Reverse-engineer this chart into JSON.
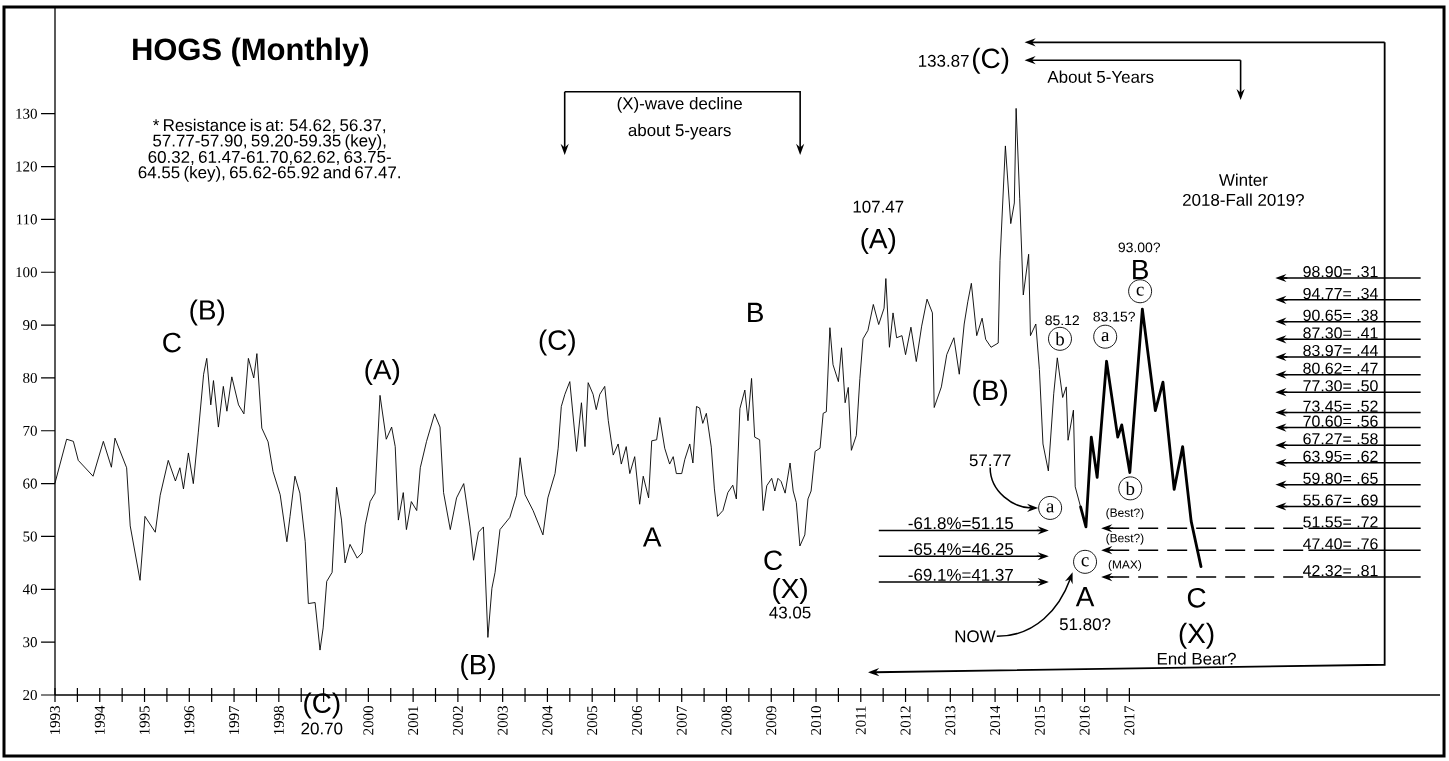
{
  "chart_data": {
    "type": "line",
    "title": "HOGS (Monthly)",
    "xlim": [
      1993,
      2023.94
    ],
    "ylim": [
      20,
      150
    ],
    "xticks": [
      1993,
      1994,
      1995,
      1996,
      1997,
      1998,
      {
        "value": 1999,
        "label": null
      },
      2000,
      2001,
      2002,
      2003,
      2004,
      2005,
      2006,
      2007,
      2008,
      2009,
      2010,
      2011,
      2012,
      2013,
      2014,
      2015,
      2016,
      2017
    ],
    "yticks": [
      20,
      30,
      40,
      50,
      60,
      70,
      80,
      90,
      100,
      110,
      120,
      130
    ],
    "series": [
      {
        "color": "#000000",
        "x": [
          1993.0,
          1993.26,
          1993.41,
          1993.52,
          1993.85,
          1994.08,
          1994.26,
          1994.34,
          1994.6,
          1994.68,
          1994.9,
          1995.01,
          1995.24,
          1995.35,
          1995.53,
          1995.69,
          1995.79,
          1995.87,
          1995.98,
          1996.09,
          1996.2,
          1996.32,
          1996.39,
          1996.48,
          1996.54,
          1996.65,
          1996.76,
          1996.84,
          1996.95,
          1997.1,
          1997.22,
          1997.32,
          1997.44,
          1997.51,
          1997.62,
          1997.76,
          1997.87,
          1998.03,
          1998.18,
          1998.25,
          1998.36,
          1998.47,
          1998.59,
          1998.66,
          1998.81,
          1998.92,
          1998.99,
          1999.07,
          1999.19,
          1999.29,
          1999.4,
          1999.48,
          1999.59,
          1999.75,
          1999.86,
          1999.93,
          2000.04,
          2000.15,
          2000.26,
          2000.4,
          2000.52,
          2000.6,
          2000.67,
          2000.78,
          2000.85,
          2000.96,
          2001.08,
          2001.16,
          2001.3,
          2001.48,
          2001.6,
          2001.68,
          2001.83,
          2001.97,
          2002.13,
          2002.27,
          2002.35,
          2002.46,
          2002.57,
          2002.67,
          2002.76,
          2002.83,
          2002.94,
          2003.16,
          2003.31,
          2003.39,
          2003.5,
          2003.68,
          2003.9,
          2004.01,
          2004.17,
          2004.24,
          2004.31,
          2004.39,
          2004.5,
          2004.65,
          2004.76,
          2004.84,
          2004.91,
          2005.02,
          2005.09,
          2005.17,
          2005.28,
          2005.36,
          2005.47,
          2005.58,
          2005.65,
          2005.76,
          2005.84,
          2005.95,
          2006.06,
          2006.14,
          2006.26,
          2006.33,
          2006.44,
          2006.51,
          2006.62,
          2006.73,
          2006.81,
          2006.88,
          2007.0,
          2007.07,
          2007.18,
          2007.25,
          2007.33,
          2007.4,
          2007.47,
          2007.55,
          2007.66,
          2007.73,
          2007.8,
          2007.92,
          2008.03,
          2008.14,
          2008.22,
          2008.3,
          2008.41,
          2008.48,
          2008.56,
          2008.63,
          2008.74,
          2008.82,
          2008.9,
          2009.01,
          2009.08,
          2009.15,
          2009.22,
          2009.31,
          2009.42,
          2009.49,
          2009.56,
          2009.64,
          2009.75,
          2009.82,
          2009.89,
          2009.98,
          2010.09,
          2010.16,
          2010.23,
          2010.31,
          2010.38,
          2010.5,
          2010.57,
          2010.65,
          2010.72,
          2010.79,
          2010.9,
          2010.98,
          2011.05,
          2011.16,
          2011.28,
          2011.4,
          2011.52,
          2011.56,
          2011.64,
          2011.72,
          2011.8,
          2011.92,
          2012.0,
          2012.12,
          2012.24,
          2012.36,
          2012.48,
          2012.6,
          2012.64,
          2012.8,
          2012.92,
          2013.08,
          2013.2,
          2013.31,
          2013.39,
          2013.47,
          2013.59,
          2013.71,
          2013.79,
          2013.91,
          2014.07,
          2014.11,
          2014.23,
          2014.35,
          2014.43,
          2014.47,
          2014.55,
          2014.63,
          2014.75,
          2014.79,
          2014.91,
          2014.99,
          2015.07,
          2015.19,
          2015.31,
          2015.39,
          2015.51,
          2015.59,
          2015.63,
          2015.75,
          2015.79,
          2015.91
        ],
        "values": [
          60.1,
          68.4,
          68.0,
          64.4,
          61.4,
          68.0,
          63.1,
          68.6,
          63.0,
          52.0,
          41.7,
          53.8,
          50.8,
          57.8,
          64.4,
          60.5,
          63.0,
          59.0,
          65.8,
          60.0,
          69.6,
          80.7,
          83.7,
          74.9,
          79.5,
          70.7,
          78.4,
          73.7,
          80.2,
          74.9,
          73.2,
          83.7,
          80.0,
          84.6,
          70.5,
          67.9,
          62.3,
          57.9,
          49.0,
          53.8,
          61.4,
          58.2,
          49.0,
          37.3,
          37.5,
          28.5,
          32.7,
          41.5,
          43.2,
          59.3,
          53.1,
          45.0,
          48.5,
          45.9,
          46.9,
          52.2,
          56.6,
          58.2,
          76.7,
          68.4,
          70.7,
          67.0,
          53.1,
          58.3,
          51.3,
          56.6,
          54.9,
          63.0,
          68.0,
          73.2,
          70.7,
          58.3,
          51.3,
          57.3,
          60.0,
          51.8,
          45.5,
          50.8,
          51.8,
          30.9,
          40.2,
          43.2,
          51.3,
          53.6,
          57.8,
          64.9,
          57.9,
          54.9,
          50.3,
          57.3,
          61.9,
          66.7,
          74.6,
          76.9,
          79.3,
          66.1,
          75.3,
          67.0,
          79.1,
          76.9,
          74.0,
          76.9,
          78.4,
          71.9,
          65.4,
          67.5,
          63.7,
          67.0,
          61.9,
          65.1,
          56.1,
          61.4,
          57.3,
          68.1,
          68.3,
          72.5,
          66.7,
          63.7,
          65.1,
          61.9,
          61.9,
          64.6,
          67.5,
          63.9,
          74.6,
          74.3,
          71.4,
          73.3,
          66.9,
          59.0,
          53.8,
          54.9,
          58.3,
          59.7,
          57.1,
          74.2,
          77.7,
          71.9,
          79.9,
          68.8,
          68.3,
          54.9,
          59.6,
          61.0,
          58.6,
          61.0,
          60.4,
          58.2,
          63.9,
          58.6,
          56.4,
          48.2,
          50.3,
          57.1,
          58.6,
          66.1,
          66.7,
          73.3,
          73.6,
          89.5,
          82.5,
          79.3,
          85.7,
          75.3,
          78.2,
          66.3,
          69.1,
          79.9,
          87.4,
          89.0,
          93.9,
          90.1,
          93.2,
          98.8,
          85.8,
          92.3,
          87.6,
          88.0,
          84.4,
          89.6,
          83.1,
          89.8,
          94.9,
          92.3,
          74.4,
          78.3,
          84.4,
          87.6,
          80.7,
          90.2,
          94.4,
          97.9,
          88.0,
          91.3,
          87.3,
          85.8,
          86.6,
          102.2,
          123.9,
          109.2,
          113.1,
          131.0,
          114.0,
          95.7,
          103.4,
          88.0,
          90.2,
          81.6,
          67.5,
          62.4,
          77.0,
          83.8,
          76.3,
          78.3,
          68.2,
          73.9,
          59.4,
          55.6
        ]
      },
      {
        "color": "#000000",
        "x": [
          2015.91,
          2016.03,
          2016.15,
          2016.28,
          2016.49,
          2016.74,
          2016.83,
          2017.01,
          2017.29,
          2017.58,
          2017.75,
          2018.0,
          2018.19,
          2018.38,
          2018.6
        ],
        "values": [
          55.6,
          51.8,
          68.8,
          61.2,
          83.15,
          68.8,
          71.1,
          62.1,
          93.0,
          73.8,
          79.2,
          58.9,
          67.0,
          52.9,
          44.3
        ]
      }
    ],
    "ref_lines": [
      {
        "axis": "y",
        "value": 51.15,
        "label": "-61.8%=51.15"
      },
      {
        "axis": "y",
        "value": 46.25,
        "label": "-65.4%=46.25"
      },
      {
        "axis": "y",
        "value": 41.37,
        "label": "-69.1%=41.37"
      },
      {
        "axis": "y",
        "value": 98.9,
        "label": "98.90= .31"
      },
      {
        "axis": "y",
        "value": 94.77,
        "label": "94.77= .34"
      },
      {
        "axis": "y",
        "value": 90.65,
        "label": "90.65= .38"
      },
      {
        "axis": "y",
        "value": 87.3,
        "label": "87.30= .41"
      },
      {
        "axis": "y",
        "value": 83.97,
        "label": "83.97= .44"
      },
      {
        "axis": "y",
        "value": 80.62,
        "label": "80.62= .47"
      },
      {
        "axis": "y",
        "value": 77.3,
        "label": "77.30= .50"
      },
      {
        "axis": "y",
        "value": 73.45,
        "label": "73.45= .52"
      },
      {
        "axis": "y",
        "value": 70.6,
        "label": "70.60= .56"
      },
      {
        "axis": "y",
        "value": 67.27,
        "label": "67.27= .58"
      },
      {
        "axis": "y",
        "value": 63.95,
        "label": "63.95= .62"
      },
      {
        "axis": "y",
        "value": 59.8,
        "label": "59.80= .65"
      },
      {
        "axis": "y",
        "value": 55.67,
        "label": "55.67= .69"
      },
      {
        "axis": "y",
        "value": 51.55,
        "label": "51.55= .72",
        "line_style": "dashed"
      },
      {
        "axis": "y",
        "value": 47.4,
        "label": "47.40= .76",
        "line_style": "dashed"
      },
      {
        "axis": "y",
        "value": 42.32,
        "label": "42.32= .81",
        "line_style": "dashed"
      }
    ],
    "annotations": [
      "* Resistance is at: 54.62, 56.37, 57.77-57.90, 59.20-59.35 (key), 60.32, 61.47-61.70,62.62, 63.75-64.55 (key), 65.62-65.92 and 67.47.",
      "(X)-wave decline",
      "about 5-years",
      "About 5-Years",
      "Winter",
      "2018-Fall 2019?",
      "C",
      "(B)",
      "(A)",
      "(C)",
      "20.70",
      "(B)",
      "(C)",
      "A",
      "B",
      "C",
      "(X)",
      "43.05",
      "107.47",
      "(A)",
      "133.87",
      "(C)",
      "(B)",
      "85.12",
      {
        "text": "b",
        "x": 2015.45,
        "y": 87.4
      },
      "83.15?",
      {
        "text": "a",
        "x": 2016.46,
        "y": 87.8
      },
      "93.00?",
      "B",
      {
        "text": "c",
        "x": 2017.24,
        "y": 96.4
      },
      {
        "text": "b",
        "x": 2017.02,
        "y": 59.1
      },
      "57.77",
      {
        "text": "a",
        "x": 2015.23,
        "y": 55.4
      },
      {
        "text": "c",
        "x": 2016.01,
        "y": 45.2
      },
      "A",
      "51.80?",
      "NOW",
      "C",
      "(X)",
      "End Bear?",
      "(Best?)",
      "(Best?)",
      "(MAX)"
    ]
  }
}
